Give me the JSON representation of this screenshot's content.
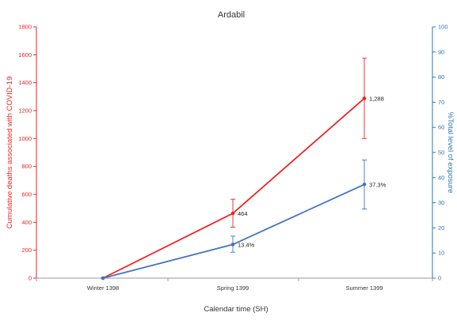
{
  "chart_data": {
    "type": "line",
    "title": "Ardabil",
    "xlabel": "Calendar time (SH)",
    "ylabel_left": "Cumulative deaths associated with COVID-19",
    "ylabel_right": "%Total level of exposure",
    "categories": [
      "Winter 1398",
      "Spring 1399",
      "Summer 1399"
    ],
    "y_left": {
      "min": 0,
      "max": 1800,
      "step": 200,
      "ticks": [
        "0",
        "200",
        "400",
        "600",
        "800",
        "1000",
        "1200",
        "1400",
        "1600",
        "1800"
      ]
    },
    "y_right": {
      "min": 0,
      "max": 100,
      "step": 10,
      "ticks": [
        "0",
        "10",
        "20",
        "30",
        "40",
        "50",
        "60",
        "70",
        "80",
        "90",
        "100"
      ]
    },
    "grid": false,
    "series": [
      {
        "axis": "left",
        "color": "#ee2222",
        "values": [
          0,
          464,
          1288
        ],
        "error_low": [
          0,
          365,
          1000
        ],
        "error_high": [
          0,
          565,
          1575
        ],
        "labels": [
          "",
          "464",
          "1,288"
        ]
      },
      {
        "axis": "right",
        "color": "#4472c4",
        "values": [
          0,
          13.4,
          37.3
        ],
        "error_low": [
          0,
          10.3,
          27.5
        ],
        "error_high": [
          0,
          16.7,
          47
        ],
        "labels": [
          "",
          "13.4%",
          "37.3%"
        ]
      }
    ],
    "colors": {
      "left_axis": "#ee2222",
      "right_axis": "#2e75b6",
      "axis_line": "#999999"
    }
  }
}
